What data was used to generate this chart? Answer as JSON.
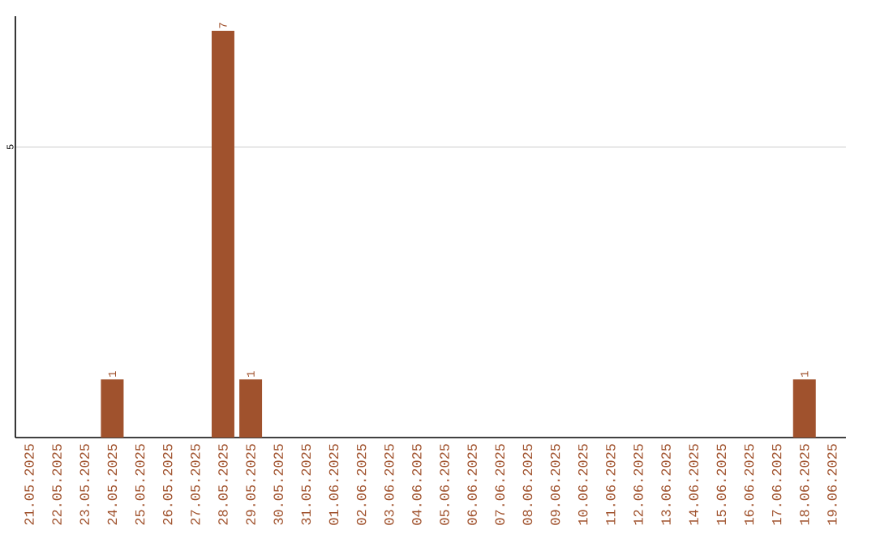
{
  "chart_data": {
    "type": "bar",
    "categories": [
      "21.05.2025",
      "22.05.2025",
      "23.05.2025",
      "24.05.2025",
      "25.05.2025",
      "26.05.2025",
      "27.05.2025",
      "28.05.2025",
      "29.05.2025",
      "30.05.2025",
      "31.05.2025",
      "01.06.2025",
      "02.06.2025",
      "03.06.2025",
      "04.06.2025",
      "05.06.2025",
      "06.06.2025",
      "07.06.2025",
      "08.06.2025",
      "09.06.2025",
      "10.06.2025",
      "11.06.2025",
      "12.06.2025",
      "13.06.2025",
      "14.06.2025",
      "15.06.2025",
      "16.06.2025",
      "17.06.2025",
      "18.06.2025",
      "19.06.2025"
    ],
    "values": [
      0,
      0,
      0,
      1,
      0,
      0,
      0,
      7,
      1,
      0,
      0,
      0,
      0,
      0,
      0,
      0,
      0,
      0,
      0,
      0,
      0,
      0,
      0,
      0,
      0,
      0,
      0,
      0,
      1,
      0
    ],
    "value_labels": [
      null,
      null,
      null,
      "1",
      null,
      null,
      null,
      "7",
      "1",
      null,
      null,
      null,
      null,
      null,
      null,
      null,
      null,
      null,
      null,
      null,
      null,
      null,
      null,
      null,
      null,
      null,
      null,
      null,
      "1",
      null
    ],
    "color": "#a0522d",
    "ylim": [
      0,
      7.25
    ],
    "yticks": [
      5
    ],
    "grid": "y"
  }
}
